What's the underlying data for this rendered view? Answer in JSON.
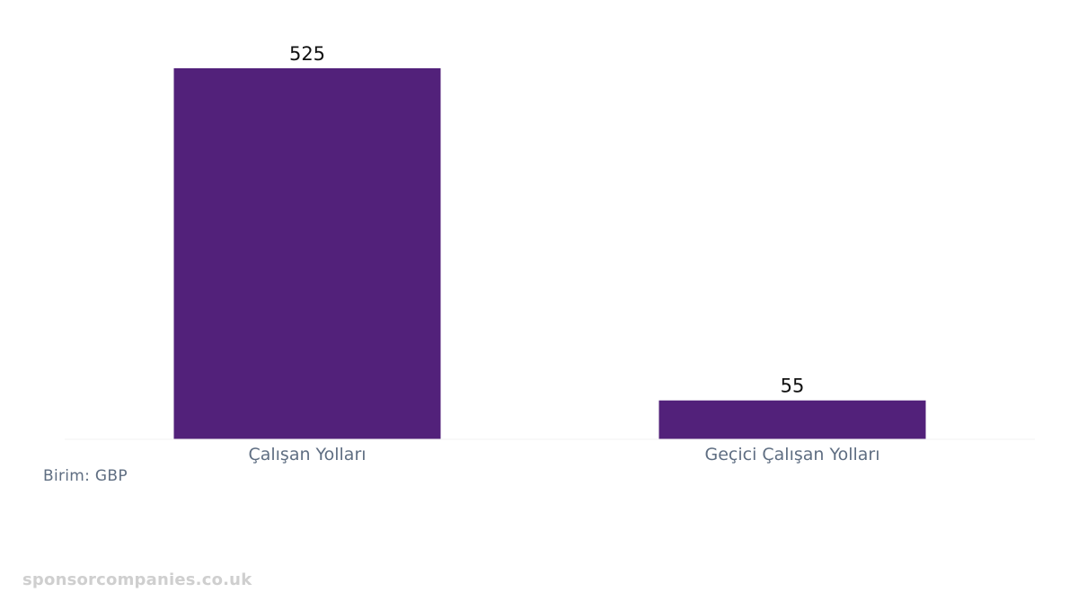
{
  "chart_data": {
    "type": "bar",
    "categories": [
      "Çalışan Yolları",
      "Geçici Çalışan Yolları"
    ],
    "values": [
      525,
      55
    ],
    "data_labels": [
      "525",
      "55"
    ],
    "ylim": [
      0,
      525
    ],
    "grid": false,
    "legend": "none",
    "bar_color": "#52217a"
  },
  "unit_text": "Birim: GBP",
  "watermark_text": "sponsorcompanies.co.uk"
}
